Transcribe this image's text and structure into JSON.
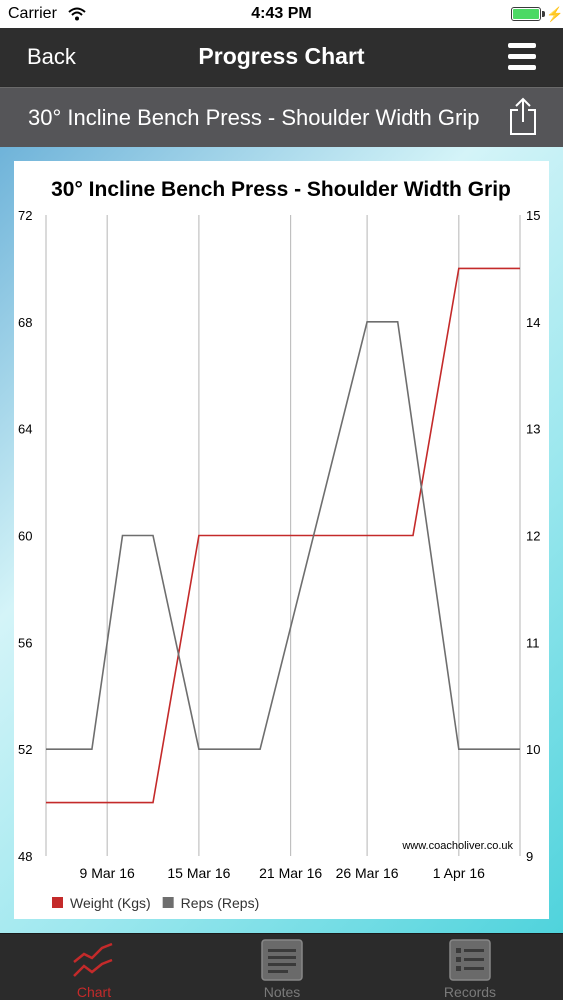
{
  "status": {
    "carrier": "Carrier",
    "time": "4:43 PM"
  },
  "nav": {
    "back_label": "Back",
    "title": "Progress Chart"
  },
  "exercise": {
    "title": "30° Incline Bench Press - Shoulder Width Grip"
  },
  "chart_data": {
    "type": "line",
    "title": "30° Incline Bench Press - Shoulder Width Grip",
    "watermark": "www.coacholiver.co.uk",
    "x_ticks": [
      "9 Mar 16",
      "15 Mar 16",
      "21 Mar 16",
      "26 Mar 16",
      "1 Apr 16"
    ],
    "y_left": {
      "range": [
        48,
        72
      ],
      "ticks": [
        "72",
        "68",
        "64",
        "60",
        "56",
        "52",
        "48"
      ]
    },
    "y_right": {
      "range": [
        9,
        15
      ],
      "ticks": [
        "15",
        "14",
        "13",
        "12",
        "11",
        "10",
        "9"
      ]
    },
    "grid": "vertical",
    "x_range": [
      "2016-03-05",
      "2016-04-05"
    ],
    "legend_position": "bottom-left",
    "series": [
      {
        "name": "Weight (Kgs)",
        "axis": "left",
        "color": "#c42a2a",
        "points": [
          {
            "x": "2016-03-05",
            "y": 50
          },
          {
            "x": "2016-03-12",
            "y": 50
          },
          {
            "x": "2016-03-15",
            "y": 60
          },
          {
            "x": "2016-03-29",
            "y": 60
          },
          {
            "x": "2016-04-01",
            "y": 70
          },
          {
            "x": "2016-04-05",
            "y": 70
          }
        ]
      },
      {
        "name": "Reps (Reps)",
        "axis": "right",
        "color": "#6e6e6e",
        "points": [
          {
            "x": "2016-03-05",
            "y": 10
          },
          {
            "x": "2016-03-08",
            "y": 10
          },
          {
            "x": "2016-03-10",
            "y": 12
          },
          {
            "x": "2016-03-12",
            "y": 12
          },
          {
            "x": "2016-03-15",
            "y": 10
          },
          {
            "x": "2016-03-19",
            "y": 10
          },
          {
            "x": "2016-03-26",
            "y": 14
          },
          {
            "x": "2016-03-28",
            "y": 14
          },
          {
            "x": "2016-04-01",
            "y": 10
          },
          {
            "x": "2016-04-05",
            "y": 10
          }
        ]
      }
    ]
  },
  "tabs": [
    {
      "label": "Chart",
      "icon": "chart-icon",
      "active": true
    },
    {
      "label": "Notes",
      "icon": "notes-icon",
      "active": false
    },
    {
      "label": "Records",
      "icon": "records-icon",
      "active": false
    }
  ]
}
